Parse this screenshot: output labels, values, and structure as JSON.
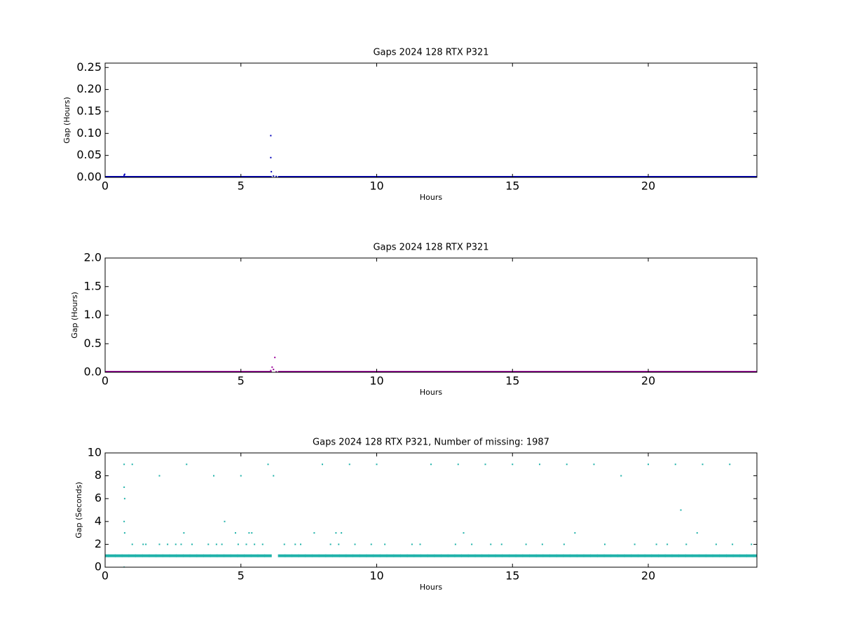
{
  "chart_data": [
    {
      "type": "scatter",
      "title": "Gaps 2024 128 RTX  P321",
      "xlabel": "Hours",
      "ylabel": "Gap (Hours)",
      "xlim": [
        0,
        24
      ],
      "ylim": [
        0,
        0.26
      ],
      "xticks": [
        0,
        5,
        10,
        15,
        20
      ],
      "yticks": [
        {
          "value": 0,
          "label": "0.00"
        },
        {
          "value": 0.05,
          "label": "0.05"
        },
        {
          "value": 0.1,
          "label": "0.10"
        },
        {
          "value": 0.15,
          "label": "0.15"
        },
        {
          "value": 0.2,
          "label": "0.20"
        },
        {
          "value": 0.25,
          "label": "0.25"
        }
      ],
      "series": [
        {
          "color": "#0000bb",
          "x": [
            0,
            0.25,
            0.5,
            0.75,
            1,
            1.25,
            1.5,
            1.75,
            2,
            2.25,
            2.5,
            2.75,
            3,
            3.25,
            3.5,
            3.75,
            4,
            4.25,
            4.5,
            4.75,
            5,
            5.25,
            5.5,
            5.75,
            6,
            6.5,
            6.75,
            7,
            7.25,
            7.5,
            7.75,
            8,
            8.25,
            8.5,
            8.75,
            9,
            9.25,
            9.5,
            9.75,
            10,
            10.25,
            10.5,
            10.75,
            11,
            11.25,
            11.5,
            11.75,
            12,
            12.25,
            12.5,
            12.75,
            13,
            13.25,
            13.5,
            13.75,
            14,
            14.25,
            14.5,
            14.75,
            15,
            15.25,
            15.5,
            15.75,
            16,
            16.25,
            16.5,
            16.75,
            17,
            17.25,
            17.5,
            17.75,
            18,
            18.25,
            18.5,
            18.75,
            19,
            19.25,
            19.5,
            19.75,
            20,
            20.25,
            20.5,
            20.75,
            21,
            21.25,
            21.5,
            21.75,
            22,
            22.25,
            22.5,
            22.75,
            23,
            23.25,
            23.5,
            23.75,
            24,
            0.7,
            0.72,
            6.1,
            6.1,
            6.12,
            6.2,
            6.3
          ],
          "values": [
            0,
            0,
            0,
            0,
            0,
            0,
            0,
            0,
            0,
            0,
            0,
            0,
            0,
            0,
            0,
            0,
            0,
            0,
            0,
            0,
            0,
            0,
            0,
            0,
            0,
            0,
            0,
            0,
            0,
            0,
            0,
            0,
            0,
            0,
            0,
            0,
            0,
            0,
            0,
            0,
            0,
            0,
            0,
            0,
            0,
            0,
            0,
            0,
            0,
            0,
            0,
            0,
            0,
            0,
            0,
            0,
            0,
            0,
            0,
            0,
            0,
            0,
            0,
            0,
            0,
            0,
            0,
            0,
            0,
            0,
            0,
            0,
            0,
            0,
            0,
            0,
            0,
            0,
            0,
            0,
            0,
            0,
            0,
            0,
            0,
            0,
            0,
            0,
            0,
            0,
            0,
            0,
            0,
            0,
            0,
            0,
            0.005,
            0.007,
            0.095,
            0.045,
            0.013,
            0.003,
            0.002
          ]
        }
      ]
    },
    {
      "type": "scatter",
      "title": "Gaps 2024 128 RTX  P321",
      "xlabel": "Hours",
      "ylabel": "Gap (Hours)",
      "xlim": [
        0,
        24
      ],
      "ylim": [
        0,
        2
      ],
      "xticks": [
        0,
        5,
        10,
        15,
        20
      ],
      "yticks": [
        {
          "value": 0,
          "label": "0.0"
        },
        {
          "value": 0.5,
          "label": "0.5"
        },
        {
          "value": 1,
          "label": "1.0"
        },
        {
          "value": 1.5,
          "label": "1.5"
        },
        {
          "value": 2,
          "label": "2.0"
        }
      ],
      "series": [
        {
          "color": "#990099",
          "x": [
            0,
            0.25,
            0.5,
            0.75,
            1,
            1.25,
            1.5,
            1.75,
            2,
            2.25,
            2.5,
            2.75,
            3,
            3.25,
            3.5,
            3.75,
            4,
            4.25,
            4.5,
            4.75,
            5,
            5.25,
            5.5,
            5.75,
            6,
            6.5,
            6.75,
            7,
            7.25,
            7.5,
            7.75,
            8,
            8.25,
            8.5,
            8.75,
            9,
            9.25,
            9.5,
            9.75,
            10,
            10.25,
            10.5,
            10.75,
            11,
            11.25,
            11.5,
            11.75,
            12,
            12.25,
            12.5,
            12.75,
            13,
            13.25,
            13.5,
            13.75,
            14,
            14.25,
            14.5,
            14.75,
            15,
            15.25,
            15.5,
            15.75,
            16,
            16.25,
            16.5,
            16.75,
            17,
            17.25,
            17.5,
            17.75,
            18,
            18.25,
            18.5,
            18.75,
            19,
            19.25,
            19.5,
            19.75,
            20,
            20.25,
            20.5,
            20.75,
            21,
            21.25,
            21.5,
            21.75,
            22,
            22.25,
            22.5,
            22.75,
            23,
            23.25,
            23.5,
            23.75,
            24,
            6.25,
            6.15,
            6.2,
            6.1,
            6.3
          ],
          "values": [
            0,
            0,
            0,
            0,
            0,
            0,
            0,
            0,
            0,
            0,
            0,
            0,
            0,
            0,
            0,
            0,
            0,
            0,
            0,
            0,
            0,
            0,
            0,
            0,
            0,
            0,
            0,
            0,
            0,
            0,
            0,
            0,
            0,
            0,
            0,
            0,
            0,
            0,
            0,
            0,
            0,
            0,
            0,
            0,
            0,
            0,
            0,
            0,
            0,
            0,
            0,
            0,
            0,
            0,
            0,
            0,
            0,
            0,
            0,
            0,
            0,
            0,
            0,
            0,
            0,
            0,
            0,
            0,
            0,
            0,
            0,
            0,
            0,
            0,
            0,
            0,
            0,
            0,
            0,
            0,
            0,
            0,
            0,
            0,
            0,
            0,
            0,
            0,
            0,
            0,
            0,
            0,
            0,
            0,
            0,
            0,
            0.26,
            0.09,
            0.05,
            0.03,
            0.01
          ]
        }
      ]
    },
    {
      "type": "scatter",
      "title": "Gaps 2024 128 RTX  P321, Number of missing: 1987",
      "xlabel": "Hours",
      "ylabel": "Gap (Seconds)",
      "xlim": [
        0,
        24
      ],
      "ylim": [
        0,
        10
      ],
      "xticks": [
        0,
        5,
        10,
        15,
        20
      ],
      "yticks": [
        0,
        2,
        4,
        6,
        8,
        10
      ],
      "series": [
        {
          "color": "#20b2aa",
          "x": [
            0,
            0.25,
            0.5,
            0.75,
            1,
            1.25,
            1.5,
            1.75,
            2,
            2.25,
            2.5,
            2.75,
            3,
            3.25,
            3.5,
            3.75,
            4,
            4.25,
            4.5,
            4.75,
            5,
            5.25,
            5.5,
            5.75,
            6,
            6.5,
            6.75,
            7,
            7.25,
            7.5,
            7.75,
            8,
            8.25,
            8.5,
            8.75,
            9,
            9.25,
            9.5,
            9.75,
            10,
            10.25,
            10.5,
            10.75,
            11,
            11.25,
            11.5,
            11.75,
            12,
            12.25,
            12.5,
            12.75,
            13,
            13.25,
            13.5,
            13.75,
            14,
            14.25,
            14.5,
            14.75,
            15,
            15.25,
            15.5,
            15.75,
            16,
            16.25,
            16.5,
            16.75,
            17,
            17.25,
            17.5,
            17.75,
            18,
            18.25,
            18.5,
            18.75,
            19,
            19.25,
            19.5,
            19.75,
            20,
            20.25,
            20.5,
            20.75,
            21,
            21.25,
            21.5,
            21.75,
            22,
            22.25,
            22.5,
            22.75,
            23,
            23.25,
            23.5,
            23.75,
            24,
            1,
            1.4,
            1.5,
            2,
            2.3,
            2.6,
            2.8,
            3.2,
            3.8,
            4.1,
            4.3,
            4.9,
            5.2,
            5.5,
            5.8,
            6.6,
            7,
            7.2,
            8.3,
            8.6,
            9.2,
            9.8,
            10.3,
            11.3,
            11.6,
            12.9,
            13.5,
            14.2,
            14.6,
            15.5,
            16.1,
            16.9,
            18.4,
            19.5,
            20.3,
            20.7,
            21.4,
            22.5,
            23.1,
            23.8,
            0.7,
            1,
            0.7,
            0.72,
            0.7,
            0.72,
            0.7,
            2,
            3,
            4,
            5,
            6,
            6.2,
            2.9,
            4.4,
            4.8,
            5.3,
            5.4,
            7.7,
            8.5,
            8.7,
            8,
            9,
            10,
            12,
            13,
            13.2,
            14,
            15,
            16,
            17,
            17.3,
            18,
            19,
            20,
            21,
            21.2,
            21.8,
            22,
            23
          ],
          "values": [
            1,
            1,
            1,
            1,
            1,
            1,
            1,
            1,
            1,
            1,
            1,
            1,
            1,
            1,
            1,
            1,
            1,
            1,
            1,
            1,
            1,
            1,
            1,
            1,
            1,
            1,
            1,
            1,
            1,
            1,
            1,
            1,
            1,
            1,
            1,
            1,
            1,
            1,
            1,
            1,
            1,
            1,
            1,
            1,
            1,
            1,
            1,
            1,
            1,
            1,
            1,
            1,
            1,
            1,
            1,
            1,
            1,
            1,
            1,
            1,
            1,
            1,
            1,
            1,
            1,
            1,
            1,
            1,
            1,
            1,
            1,
            1,
            1,
            1,
            1,
            1,
            1,
            1,
            1,
            1,
            1,
            1,
            1,
            1,
            1,
            1,
            1,
            1,
            1,
            1,
            1,
            1,
            1,
            1,
            1,
            1,
            2,
            2,
            2,
            2,
            2,
            2,
            2,
            2,
            2,
            2,
            2,
            2,
            2,
            2,
            2,
            2,
            2,
            2,
            2,
            2,
            2,
            2,
            2,
            2,
            2,
            2,
            2,
            2,
            2,
            2,
            2,
            2,
            2,
            2,
            2,
            2,
            2,
            2,
            2,
            2,
            9,
            9,
            7,
            6,
            4,
            3,
            0,
            8,
            9,
            8,
            8,
            9,
            8,
            3,
            4,
            3,
            3,
            3,
            3,
            3,
            3,
            9,
            9,
            9,
            9,
            9,
            3,
            9,
            9,
            9,
            9,
            3,
            9,
            8,
            9,
            9,
            5,
            3,
            9,
            9
          ]
        }
      ]
    }
  ]
}
